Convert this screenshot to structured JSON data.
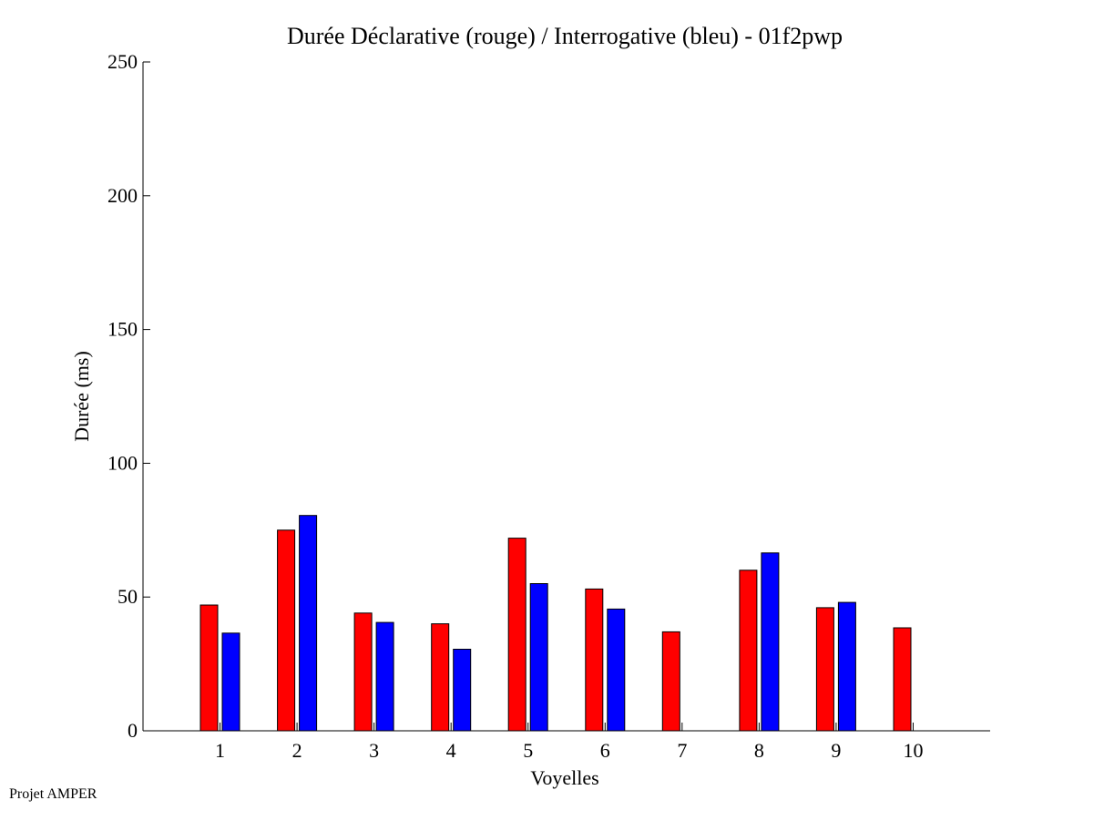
{
  "chart_data": {
    "type": "bar",
    "title": "Durée Déclarative (rouge) / Interrogative (bleu) - 01f2pwp",
    "xlabel": "Voyelles",
    "ylabel": "Durée (ms)",
    "categories": [
      "1",
      "2",
      "3",
      "4",
      "5",
      "6",
      "7",
      "8",
      "9",
      "10"
    ],
    "xlim": [
      0,
      11
    ],
    "ylim": [
      0,
      250
    ],
    "yticks": [
      0,
      50,
      100,
      150,
      200,
      250
    ],
    "grid": false,
    "legend": "none",
    "series": [
      {
        "color": "#ff0000",
        "values": [
          47,
          75,
          44,
          40,
          72,
          53,
          37,
          60,
          46,
          38.5
        ]
      },
      {
        "color": "#0000ff",
        "values": [
          36.5,
          80.5,
          40.5,
          30.5,
          55,
          45.5,
          null,
          66.5,
          48,
          null
        ]
      }
    ]
  },
  "footer": {
    "note": "Projet AMPER"
  }
}
